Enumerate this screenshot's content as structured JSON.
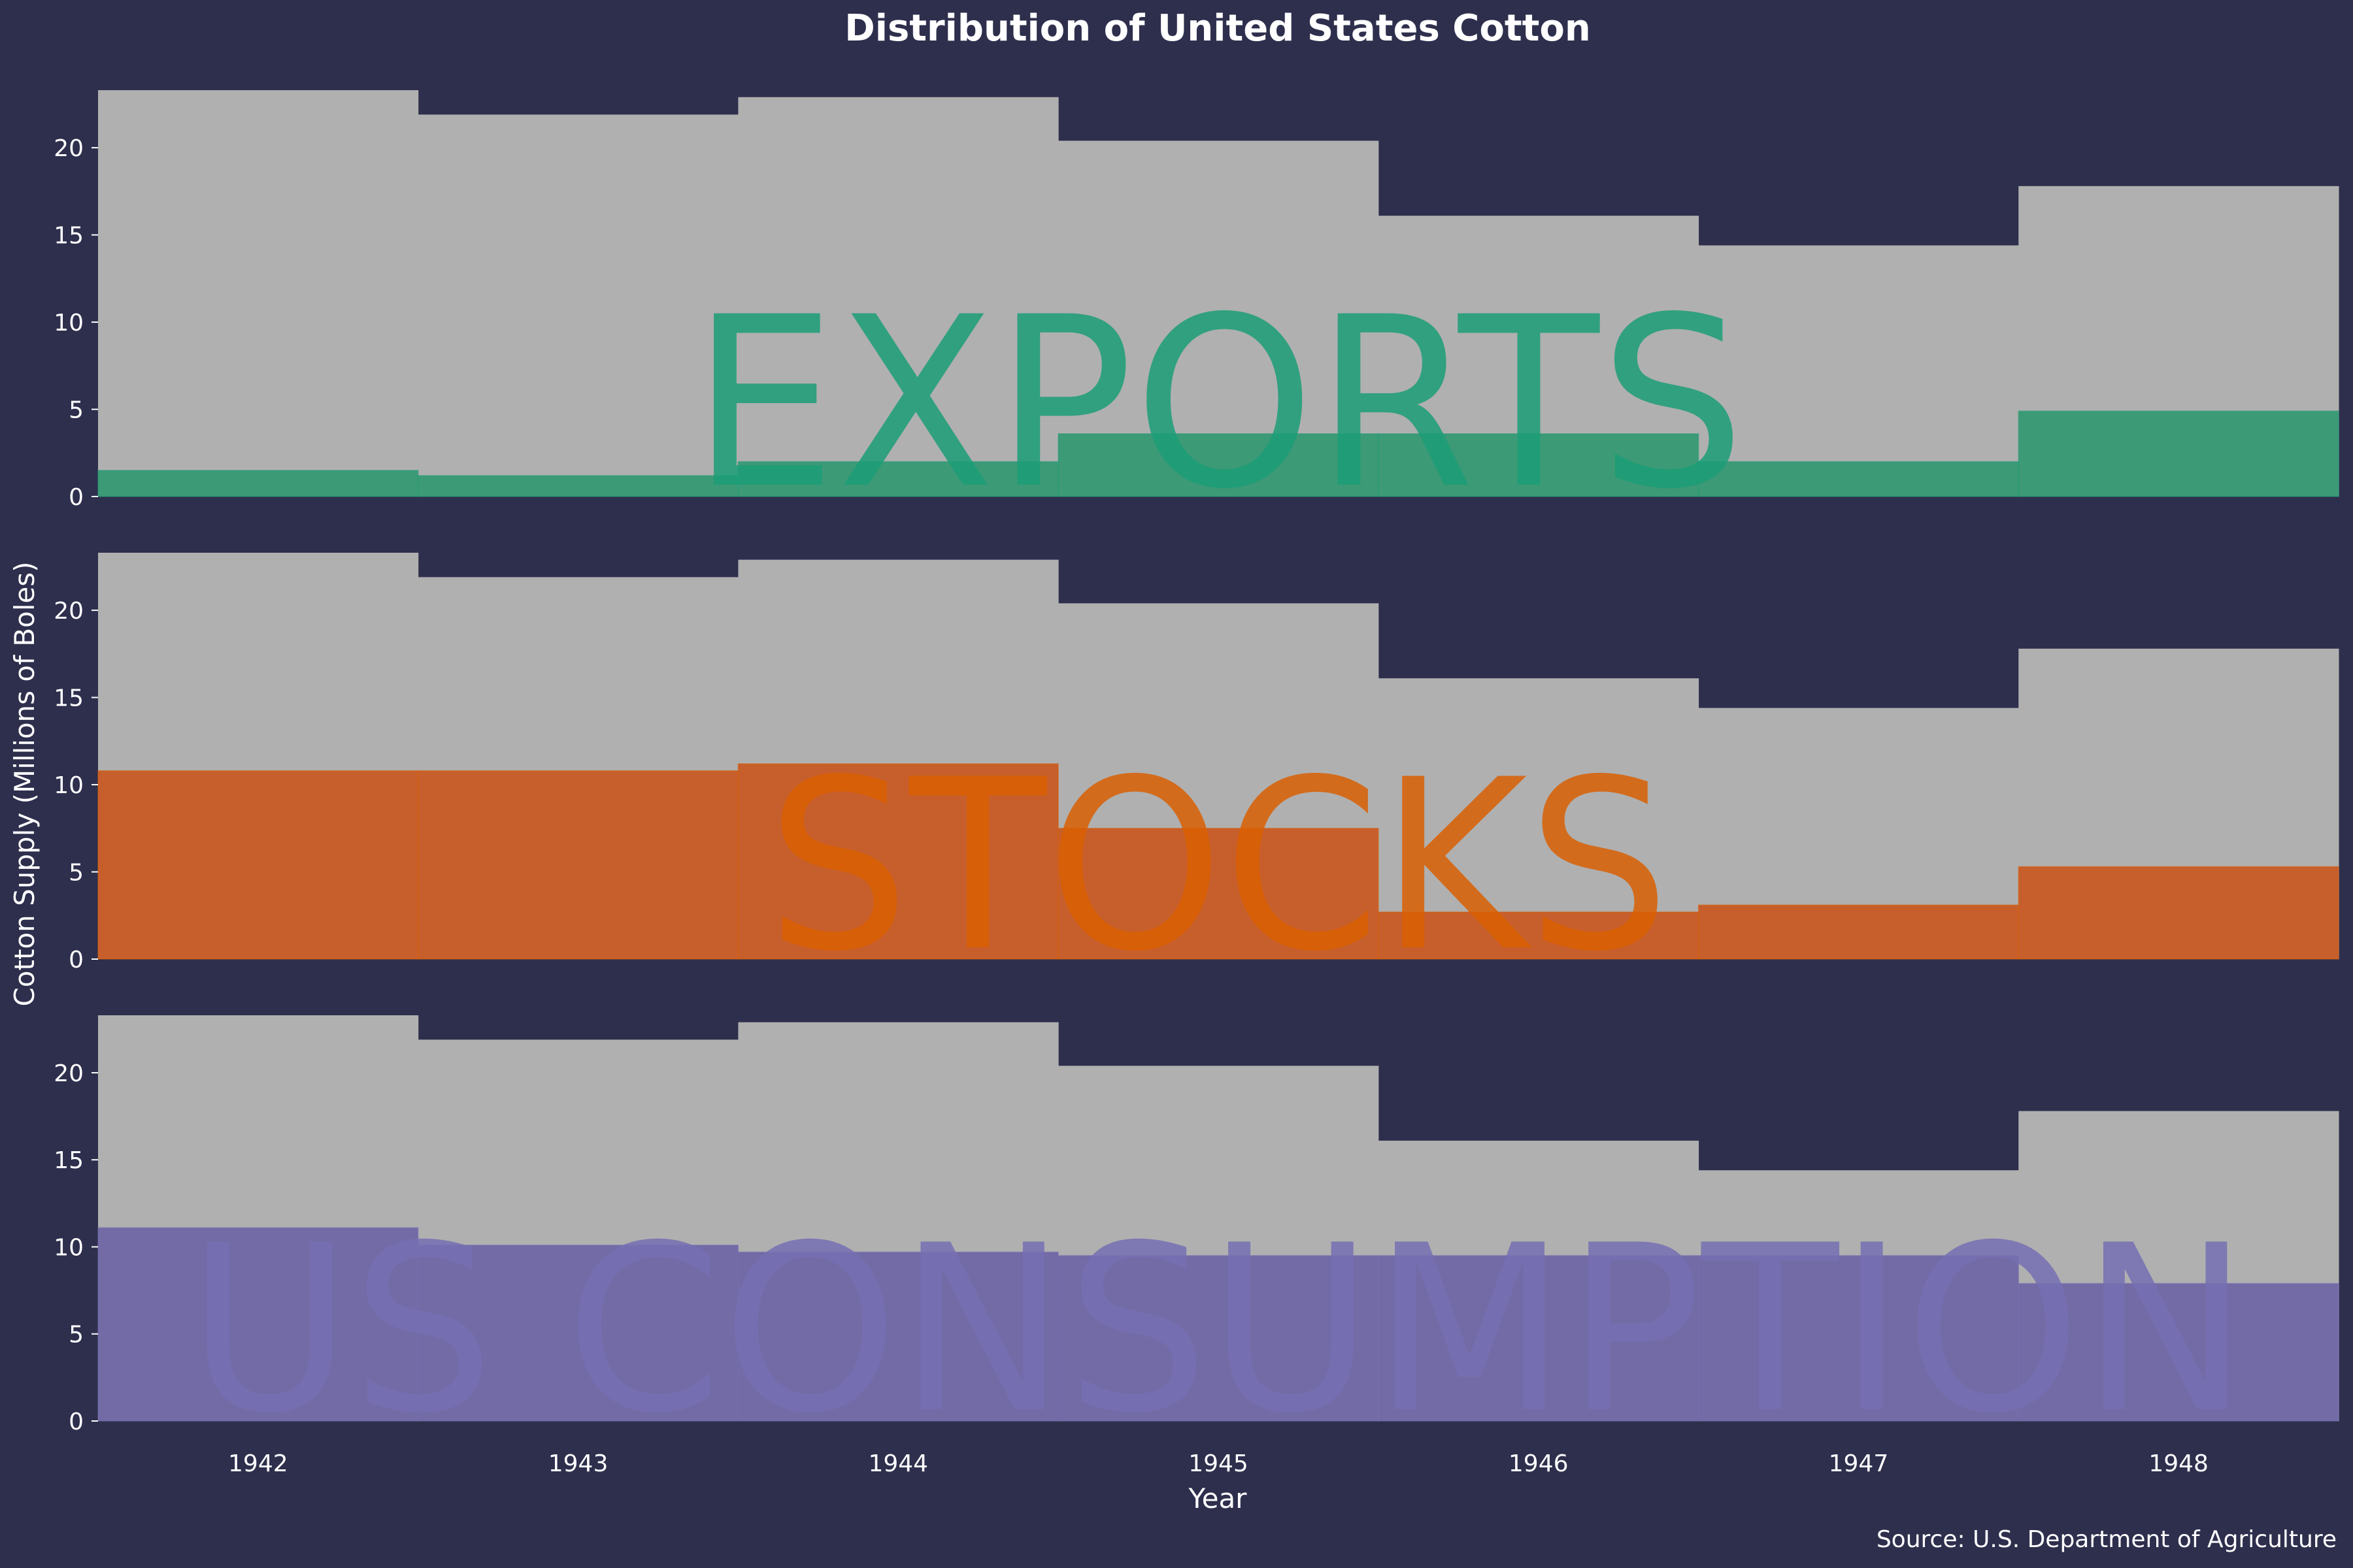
{
  "chart_data": {
    "type": "bar",
    "title": "Distribution of United States Cotton",
    "xlabel": "Year",
    "ylabel": "Cotton Supply (Millions of Boles)",
    "source": "Source: U.S. Department of Agriculture",
    "categories": [
      "1942",
      "1943",
      "1944",
      "1945",
      "1946",
      "1947",
      "1948"
    ],
    "ylim": [
      0,
      23.3
    ],
    "yticks": [
      0,
      5,
      10,
      15,
      20
    ],
    "total_supply": [
      23.3,
      21.9,
      22.9,
      20.4,
      16.1,
      14.4,
      17.8
    ],
    "panels": [
      {
        "label": "EXPORTS",
        "values": [
          1.5,
          1.2,
          2.0,
          3.6,
          3.6,
          2.0,
          4.9
        ]
      },
      {
        "label": "STOCKS",
        "values": [
          10.8,
          10.8,
          11.2,
          7.5,
          2.7,
          3.1,
          5.3
        ]
      },
      {
        "label": "US CONSUMPTION",
        "values": [
          11.1,
          10.1,
          9.7,
          9.5,
          9.5,
          9.5,
          7.9
        ]
      }
    ],
    "colors": {
      "background": "#2e2f4d",
      "total": "#b0b0b0",
      "exports": "#3d9a76",
      "stocks": "#c75f2c",
      "consumption": "#736ba6",
      "exports_label": "#1b9e77",
      "stocks_label": "#d95f02",
      "consumption_label": "#7570b3",
      "text": "#ffffff"
    },
    "grid": false
  }
}
